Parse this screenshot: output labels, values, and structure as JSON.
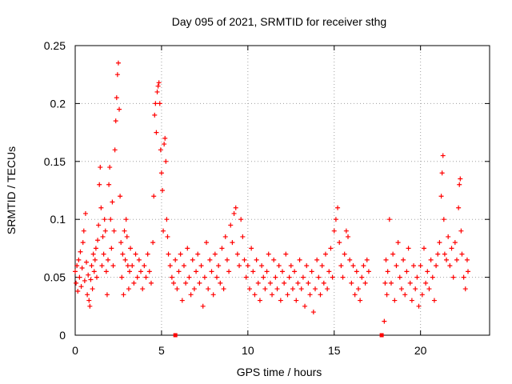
{
  "chart_data": {
    "type": "scatter",
    "title": "Day 095 of 2021, SRMTID for receiver sthg",
    "xlabel": "GPS time / hours",
    "ylabel": "SRMTID / TECUs",
    "xlim": [
      0,
      24
    ],
    "ylim": [
      0,
      0.25
    ],
    "grid": true,
    "x_ticks": [
      0,
      5,
      10,
      15,
      20
    ],
    "x_tick_labels": [
      "0",
      "5",
      "10",
      "15",
      "20"
    ],
    "y_ticks": [
      0,
      0.05,
      0.1,
      0.15,
      0.2,
      0.25
    ],
    "y_tick_labels": [
      "0",
      "0.05",
      "0.1",
      "0.15",
      "0.2",
      "0.25"
    ],
    "marker": "+",
    "color": "#ff0000",
    "series": [
      {
        "name": "SRMTID",
        "points": [
          [
            0.0,
            0.055
          ],
          [
            0.05,
            0.045
          ],
          [
            0.1,
            0.06
          ],
          [
            0.15,
            0.038
          ],
          [
            0.2,
            0.065
          ],
          [
            0.25,
            0.05
          ],
          [
            0.3,
            0.072
          ],
          [
            0.35,
            0.042
          ],
          [
            0.4,
            0.058
          ],
          [
            0.45,
            0.08
          ],
          [
            0.5,
            0.09
          ],
          [
            0.55,
            0.047
          ],
          [
            0.6,
            0.105
          ],
          [
            0.65,
            0.063
          ],
          [
            0.7,
            0.035
          ],
          [
            0.75,
            0.052
          ],
          [
            0.8,
            0.03
          ],
          [
            0.85,
            0.025
          ],
          [
            0.9,
            0.048
          ],
          [
            0.95,
            0.06
          ],
          [
            1.0,
            0.04
          ],
          [
            1.05,
            0.07
          ],
          [
            1.1,
            0.055
          ],
          [
            1.15,
            0.065
          ],
          [
            1.2,
            0.075
          ],
          [
            1.25,
            0.05
          ],
          [
            1.3,
            0.082
          ],
          [
            1.35,
            0.095
          ],
          [
            1.4,
            0.13
          ],
          [
            1.45,
            0.145
          ],
          [
            1.5,
            0.11
          ],
          [
            1.55,
            0.06
          ],
          [
            1.6,
            0.085
          ],
          [
            1.65,
            0.07
          ],
          [
            1.7,
            0.1
          ],
          [
            1.75,
            0.09
          ],
          [
            1.8,
            0.055
          ],
          [
            1.85,
            0.035
          ],
          [
            1.9,
            0.065
          ],
          [
            1.95,
            0.13
          ],
          [
            2.0,
            0.145
          ],
          [
            2.05,
            0.1
          ],
          [
            2.1,
            0.075
          ],
          [
            2.15,
            0.115
          ],
          [
            2.2,
            0.06
          ],
          [
            2.25,
            0.09
          ],
          [
            2.3,
            0.16
          ],
          [
            2.35,
            0.185
          ],
          [
            2.4,
            0.205
          ],
          [
            2.45,
            0.225
          ],
          [
            2.5,
            0.235
          ],
          [
            2.55,
            0.195
          ],
          [
            2.6,
            0.12
          ],
          [
            2.65,
            0.08
          ],
          [
            2.7,
            0.05
          ],
          [
            2.75,
            0.07
          ],
          [
            2.8,
            0.035
          ],
          [
            2.85,
            0.09
          ],
          [
            2.9,
            0.065
          ],
          [
            2.95,
            0.1
          ],
          [
            3.0,
            0.085
          ],
          [
            3.05,
            0.06
          ],
          [
            3.1,
            0.04
          ],
          [
            3.15,
            0.055
          ],
          [
            3.2,
            0.075
          ],
          [
            3.3,
            0.06
          ],
          [
            3.4,
            0.045
          ],
          [
            3.5,
            0.07
          ],
          [
            3.6,
            0.05
          ],
          [
            3.7,
            0.065
          ],
          [
            3.8,
            0.055
          ],
          [
            3.9,
            0.04
          ],
          [
            4.0,
            0.06
          ],
          [
            4.1,
            0.05
          ],
          [
            4.2,
            0.07
          ],
          [
            4.3,
            0.055
          ],
          [
            4.4,
            0.045
          ],
          [
            4.5,
            0.08
          ],
          [
            4.55,
            0.12
          ],
          [
            4.6,
            0.19
          ],
          [
            4.65,
            0.2
          ],
          [
            4.7,
            0.175
          ],
          [
            4.75,
            0.21
          ],
          [
            4.8,
            0.215
          ],
          [
            4.85,
            0.218
          ],
          [
            4.9,
            0.2
          ],
          [
            4.95,
            0.16
          ],
          [
            5.0,
            0.14
          ],
          [
            5.05,
            0.125
          ],
          [
            5.1,
            0.09
          ],
          [
            5.15,
            0.165
          ],
          [
            5.2,
            0.17
          ],
          [
            5.25,
            0.15
          ],
          [
            5.3,
            0.1
          ],
          [
            5.35,
            0.085
          ],
          [
            5.4,
            0.07
          ],
          [
            5.5,
            0.06
          ],
          [
            5.6,
            0.05
          ],
          [
            5.7,
            0.045
          ],
          [
            5.8,
            0.065
          ],
          [
            5.9,
            0.04
          ],
          [
            6.0,
            0.055
          ],
          [
            6.1,
            0.07
          ],
          [
            6.2,
            0.03
          ],
          [
            6.3,
            0.06
          ],
          [
            6.4,
            0.045
          ],
          [
            6.5,
            0.075
          ],
          [
            6.6,
            0.05
          ],
          [
            6.7,
            0.035
          ],
          [
            6.8,
            0.065
          ],
          [
            6.9,
            0.04
          ],
          [
            7.0,
            0.055
          ],
          [
            7.1,
            0.07
          ],
          [
            7.2,
            0.045
          ],
          [
            7.3,
            0.06
          ],
          [
            7.4,
            0.025
          ],
          [
            7.5,
            0.05
          ],
          [
            7.6,
            0.08
          ],
          [
            7.7,
            0.04
          ],
          [
            7.8,
            0.065
          ],
          [
            7.9,
            0.055
          ],
          [
            8.0,
            0.035
          ],
          [
            8.1,
            0.07
          ],
          [
            8.2,
            0.05
          ],
          [
            8.3,
            0.06
          ],
          [
            8.4,
            0.045
          ],
          [
            8.5,
            0.075
          ],
          [
            8.6,
            0.04
          ],
          [
            8.7,
            0.085
          ],
          [
            8.8,
            0.065
          ],
          [
            8.9,
            0.055
          ],
          [
            9.0,
            0.095
          ],
          [
            9.1,
            0.08
          ],
          [
            9.2,
            0.105
          ],
          [
            9.3,
            0.11
          ],
          [
            9.4,
            0.07
          ],
          [
            9.5,
            0.06
          ],
          [
            9.6,
            0.1
          ],
          [
            9.7,
            0.085
          ],
          [
            9.8,
            0.065
          ],
          [
            9.9,
            0.05
          ],
          [
            10.0,
            0.06
          ],
          [
            10.1,
            0.04
          ],
          [
            10.2,
            0.075
          ],
          [
            10.3,
            0.055
          ],
          [
            10.4,
            0.035
          ],
          [
            10.5,
            0.065
          ],
          [
            10.6,
            0.045
          ],
          [
            10.7,
            0.03
          ],
          [
            10.8,
            0.06
          ],
          [
            10.9,
            0.05
          ],
          [
            11.0,
            0.04
          ],
          [
            11.1,
            0.055
          ],
          [
            11.2,
            0.07
          ],
          [
            11.3,
            0.045
          ],
          [
            11.4,
            0.035
          ],
          [
            11.5,
            0.065
          ],
          [
            11.6,
            0.05
          ],
          [
            11.7,
            0.04
          ],
          [
            11.8,
            0.06
          ],
          [
            11.9,
            0.03
          ],
          [
            12.0,
            0.055
          ],
          [
            12.1,
            0.045
          ],
          [
            12.2,
            0.07
          ],
          [
            12.3,
            0.035
          ],
          [
            12.4,
            0.05
          ],
          [
            12.5,
            0.06
          ],
          [
            12.6,
            0.04
          ],
          [
            12.7,
            0.055
          ],
          [
            12.8,
            0.03
          ],
          [
            12.9,
            0.045
          ],
          [
            13.0,
            0.065
          ],
          [
            13.1,
            0.04
          ],
          [
            13.2,
            0.05
          ],
          [
            13.3,
            0.025
          ],
          [
            13.4,
            0.06
          ],
          [
            13.5,
            0.045
          ],
          [
            13.6,
            0.035
          ],
          [
            13.7,
            0.055
          ],
          [
            13.8,
            0.02
          ],
          [
            13.9,
            0.04
          ],
          [
            14.0,
            0.065
          ],
          [
            14.1,
            0.05
          ],
          [
            14.2,
            0.035
          ],
          [
            14.3,
            0.06
          ],
          [
            14.4,
            0.045
          ],
          [
            14.5,
            0.07
          ],
          [
            14.6,
            0.04
          ],
          [
            14.7,
            0.055
          ],
          [
            14.8,
            0.075
          ],
          [
            14.9,
            0.05
          ],
          [
            15.0,
            0.09
          ],
          [
            15.1,
            0.1
          ],
          [
            15.2,
            0.11
          ],
          [
            15.3,
            0.08
          ],
          [
            15.4,
            0.06
          ],
          [
            15.5,
            0.05
          ],
          [
            15.6,
            0.07
          ],
          [
            15.7,
            0.09
          ],
          [
            15.8,
            0.085
          ],
          [
            15.9,
            0.065
          ],
          [
            16.0,
            0.045
          ],
          [
            16.1,
            0.06
          ],
          [
            16.2,
            0.035
          ],
          [
            16.3,
            0.055
          ],
          [
            16.4,
            0.04
          ],
          [
            16.5,
            0.03
          ],
          [
            16.6,
            0.05
          ],
          [
            16.7,
            0.06
          ],
          [
            16.8,
            0.045
          ],
          [
            16.9,
            0.065
          ],
          [
            17.0,
            0.055
          ],
          [
            17.9,
            0.012
          ],
          [
            17.95,
            0.045
          ],
          [
            18.0,
            0.065
          ],
          [
            18.05,
            0.035
          ],
          [
            18.1,
            0.055
          ],
          [
            18.2,
            0.1
          ],
          [
            18.3,
            0.045
          ],
          [
            18.4,
            0.07
          ],
          [
            18.5,
            0.03
          ],
          [
            18.6,
            0.06
          ],
          [
            18.7,
            0.08
          ],
          [
            18.8,
            0.05
          ],
          [
            18.9,
            0.04
          ],
          [
            19.0,
            0.065
          ],
          [
            19.1,
            0.035
          ],
          [
            19.2,
            0.055
          ],
          [
            19.3,
            0.075
          ],
          [
            19.4,
            0.045
          ],
          [
            19.5,
            0.03
          ],
          [
            19.6,
            0.06
          ],
          [
            19.7,
            0.04
          ],
          [
            19.8,
            0.05
          ],
          [
            19.9,
            0.025
          ],
          [
            20.0,
            0.06
          ],
          [
            20.1,
            0.035
          ],
          [
            20.2,
            0.075
          ],
          [
            20.3,
            0.045
          ],
          [
            20.4,
            0.055
          ],
          [
            20.5,
            0.04
          ],
          [
            20.6,
            0.065
          ],
          [
            20.7,
            0.05
          ],
          [
            20.8,
            0.03
          ],
          [
            20.9,
            0.06
          ],
          [
            21.0,
            0.07
          ],
          [
            21.1,
            0.08
          ],
          [
            21.2,
            0.12
          ],
          [
            21.25,
            0.14
          ],
          [
            21.3,
            0.155
          ],
          [
            21.35,
            0.1
          ],
          [
            21.4,
            0.07
          ],
          [
            21.5,
            0.065
          ],
          [
            21.6,
            0.085
          ],
          [
            21.7,
            0.06
          ],
          [
            21.8,
            0.075
          ],
          [
            21.9,
            0.05
          ],
          [
            22.0,
            0.08
          ],
          [
            22.1,
            0.065
          ],
          [
            22.2,
            0.11
          ],
          [
            22.25,
            0.13
          ],
          [
            22.3,
            0.135
          ],
          [
            22.35,
            0.09
          ],
          [
            22.4,
            0.07
          ],
          [
            22.5,
            0.05
          ],
          [
            22.6,
            0.04
          ],
          [
            22.7,
            0.065
          ],
          [
            22.75,
            0.055
          ]
        ]
      }
    ],
    "zero_markers_x": [
      5.8,
      17.75
    ]
  }
}
